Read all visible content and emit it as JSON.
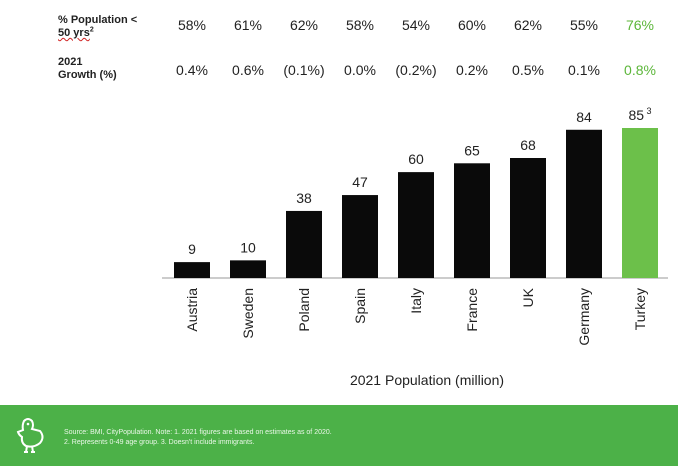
{
  "rows": [
    {
      "label_line1": "% Population <",
      "label_line2": "50 yrs",
      "label_sup": "2",
      "values": [
        "58%",
        "61%",
        "62%",
        "58%",
        "54%",
        "60%",
        "62%",
        "55%",
        "76%"
      ]
    },
    {
      "label_line1": "2021",
      "label_line2": "Growth (%)",
      "values": [
        "0.4%",
        "0.6%",
        "(0.1%)",
        "0.0%",
        "(0.2%)",
        "0.2%",
        "0.5%",
        "0.1%",
        "0.8%"
      ]
    }
  ],
  "chart_data": {
    "type": "bar",
    "categories": [
      "Austria",
      "Sweden",
      "Poland",
      "Spain",
      "Italy",
      "France",
      "UK",
      "Germany",
      "Turkey"
    ],
    "values": [
      9,
      10,
      38,
      47,
      60,
      65,
      68,
      84,
      85
    ],
    "value_labels": [
      "9",
      "10",
      "38",
      "47",
      "60",
      "65",
      "68",
      "84",
      "85"
    ],
    "highlight_label_sup": "3",
    "xlabel": "2021 Population (million)",
    "ylabel": "",
    "ylim": [
      0,
      85
    ],
    "grid": false,
    "highlight_index": 8,
    "colors": {
      "bar": "#0a0a0a",
      "highlight": "#6cc04a",
      "baseline": "#999999"
    }
  },
  "footer": {
    "line1": "Source: BMI, CityPopulation. Note: 1. 2021 figures are based on estimates as of 2020.",
    "line2": "2. Represents 0-49 age group. 3. Doesn't include immigrants.",
    "background": "#4cb148",
    "icon": "bird-mascot-icon"
  }
}
